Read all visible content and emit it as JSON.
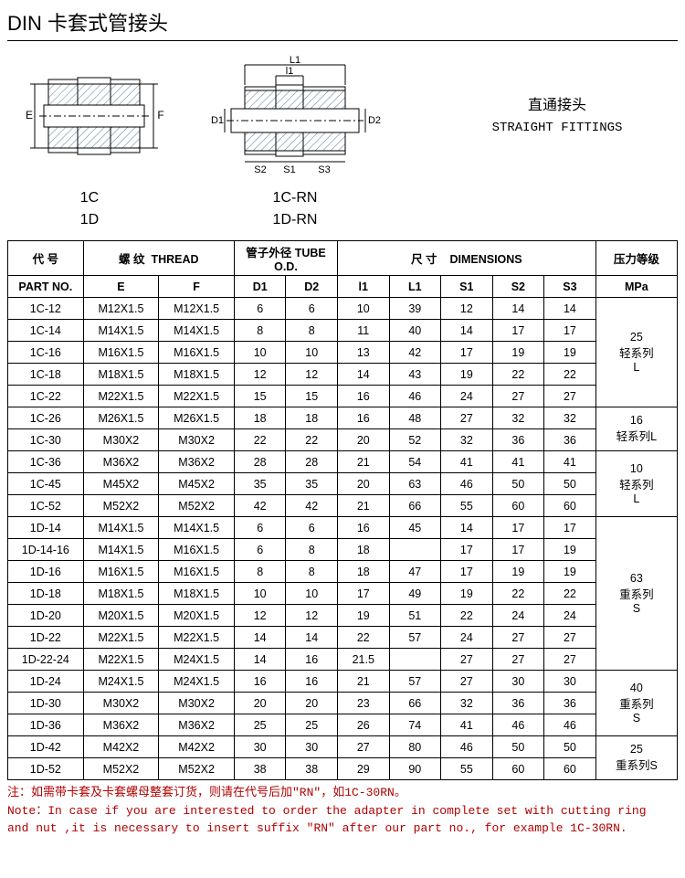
{
  "title": "DIN 卡套式管接头",
  "rightLabel": {
    "cn": "直通接头",
    "en": "STRAIGHT FITTINGS"
  },
  "codes": {
    "left1": "1C",
    "left2": "1D",
    "right1": "1C-RN",
    "right2": "1D-RN"
  },
  "header": {
    "part_cn": "代  号",
    "part_en": "PART NO.",
    "thread_cn": "螺  纹",
    "thread_en": "THREAD",
    "tube_cn": "管子外径",
    "tube_en": "TUBE O.D.",
    "dim_cn": "尺  寸",
    "dim_en": "DIMENSIONS",
    "mpa_cn": "压力等级",
    "mpa_en": "MPa",
    "E": "E",
    "F": "F",
    "D1": "D1",
    "D2": "D2",
    "l1": "l1",
    "L1": "L1",
    "S1": "S1",
    "S2": "S2",
    "S3": "S3"
  },
  "mpaGroups": [
    {
      "text": "25\n轻系列\nL",
      "span": 5
    },
    {
      "text": "16\n轻系列L",
      "span": 2
    },
    {
      "text": "10\n轻系列\nL",
      "span": 3
    },
    {
      "text": "63\n重系列\nS",
      "span": 7
    },
    {
      "text": "40\n重系列\nS",
      "span": 3
    },
    {
      "text": "25\n重系列S",
      "span": 2
    }
  ],
  "rows": [
    [
      "1C-12",
      "M12X1.5",
      "M12X1.5",
      "6",
      "6",
      "10",
      "39",
      "12",
      "14",
      "14"
    ],
    [
      "1C-14",
      "M14X1.5",
      "M14X1.5",
      "8",
      "8",
      "11",
      "40",
      "14",
      "17",
      "17"
    ],
    [
      "1C-16",
      "M16X1.5",
      "M16X1.5",
      "10",
      "10",
      "13",
      "42",
      "17",
      "19",
      "19"
    ],
    [
      "1C-18",
      "M18X1.5",
      "M18X1.5",
      "12",
      "12",
      "14",
      "43",
      "19",
      "22",
      "22"
    ],
    [
      "1C-22",
      "M22X1.5",
      "M22X1.5",
      "15",
      "15",
      "16",
      "46",
      "24",
      "27",
      "27"
    ],
    [
      "1C-26",
      "M26X1.5",
      "M26X1.5",
      "18",
      "18",
      "16",
      "48",
      "27",
      "32",
      "32"
    ],
    [
      "1C-30",
      "M30X2",
      "M30X2",
      "22",
      "22",
      "20",
      "52",
      "32",
      "36",
      "36"
    ],
    [
      "1C-36",
      "M36X2",
      "M36X2",
      "28",
      "28",
      "21",
      "54",
      "41",
      "41",
      "41"
    ],
    [
      "1C-45",
      "M45X2",
      "M45X2",
      "35",
      "35",
      "20",
      "63",
      "46",
      "50",
      "50"
    ],
    [
      "1C-52",
      "M52X2",
      "M52X2",
      "42",
      "42",
      "21",
      "66",
      "55",
      "60",
      "60"
    ],
    [
      "1D-14",
      "M14X1.5",
      "M14X1.5",
      "6",
      "6",
      "16",
      "45",
      "14",
      "17",
      "17"
    ],
    [
      "1D-14-16",
      "M14X1.5",
      "M16X1.5",
      "6",
      "8",
      "18",
      "",
      "17",
      "17",
      "19"
    ],
    [
      "1D-16",
      "M16X1.5",
      "M16X1.5",
      "8",
      "8",
      "18",
      "47",
      "17",
      "19",
      "19"
    ],
    [
      "1D-18",
      "M18X1.5",
      "M18X1.5",
      "10",
      "10",
      "17",
      "49",
      "19",
      "22",
      "22"
    ],
    [
      "1D-20",
      "M20X1.5",
      "M20X1.5",
      "12",
      "12",
      "19",
      "51",
      "22",
      "24",
      "24"
    ],
    [
      "1D-22",
      "M22X1.5",
      "M22X1.5",
      "14",
      "14",
      "22",
      "57",
      "24",
      "27",
      "27"
    ],
    [
      "1D-22-24",
      "M22X1.5",
      "M24X1.5",
      "14",
      "16",
      "21.5",
      "",
      "27",
      "27",
      "27"
    ],
    [
      "1D-24",
      "M24X1.5",
      "M24X1.5",
      "16",
      "16",
      "21",
      "57",
      "27",
      "30",
      "30"
    ],
    [
      "1D-30",
      "M30X2",
      "M30X2",
      "20",
      "20",
      "23",
      "66",
      "32",
      "36",
      "36"
    ],
    [
      "1D-36",
      "M36X2",
      "M36X2",
      "25",
      "25",
      "26",
      "74",
      "41",
      "46",
      "46"
    ],
    [
      "1D-42",
      "M42X2",
      "M42X2",
      "30",
      "30",
      "27",
      "80",
      "46",
      "50",
      "50"
    ],
    [
      "1D-52",
      "M52X2",
      "M52X2",
      "38",
      "38",
      "29",
      "90",
      "55",
      "60",
      "60"
    ]
  ],
  "note": {
    "l1": "注：如需带卡套及卡套螺母整套订货，则请在代号后加\"RN\"，如1C-30RN。",
    "l2": "Note：In case if you are interested to order the adapter in complete set with cutting ring",
    "l3": " and nut ,it is necessary to insert suffix \"RN\" after our part no., for example 1C-30RN."
  },
  "dimLabels": {
    "E": "E",
    "F": "F",
    "D1": "D1",
    "D2": "D2",
    "l1": "l1",
    "L1": "L1",
    "S1": "S1",
    "S2": "S2",
    "S3": "S3"
  },
  "colors": {
    "hatch": "#5a7fa0",
    "line": "#000000"
  }
}
